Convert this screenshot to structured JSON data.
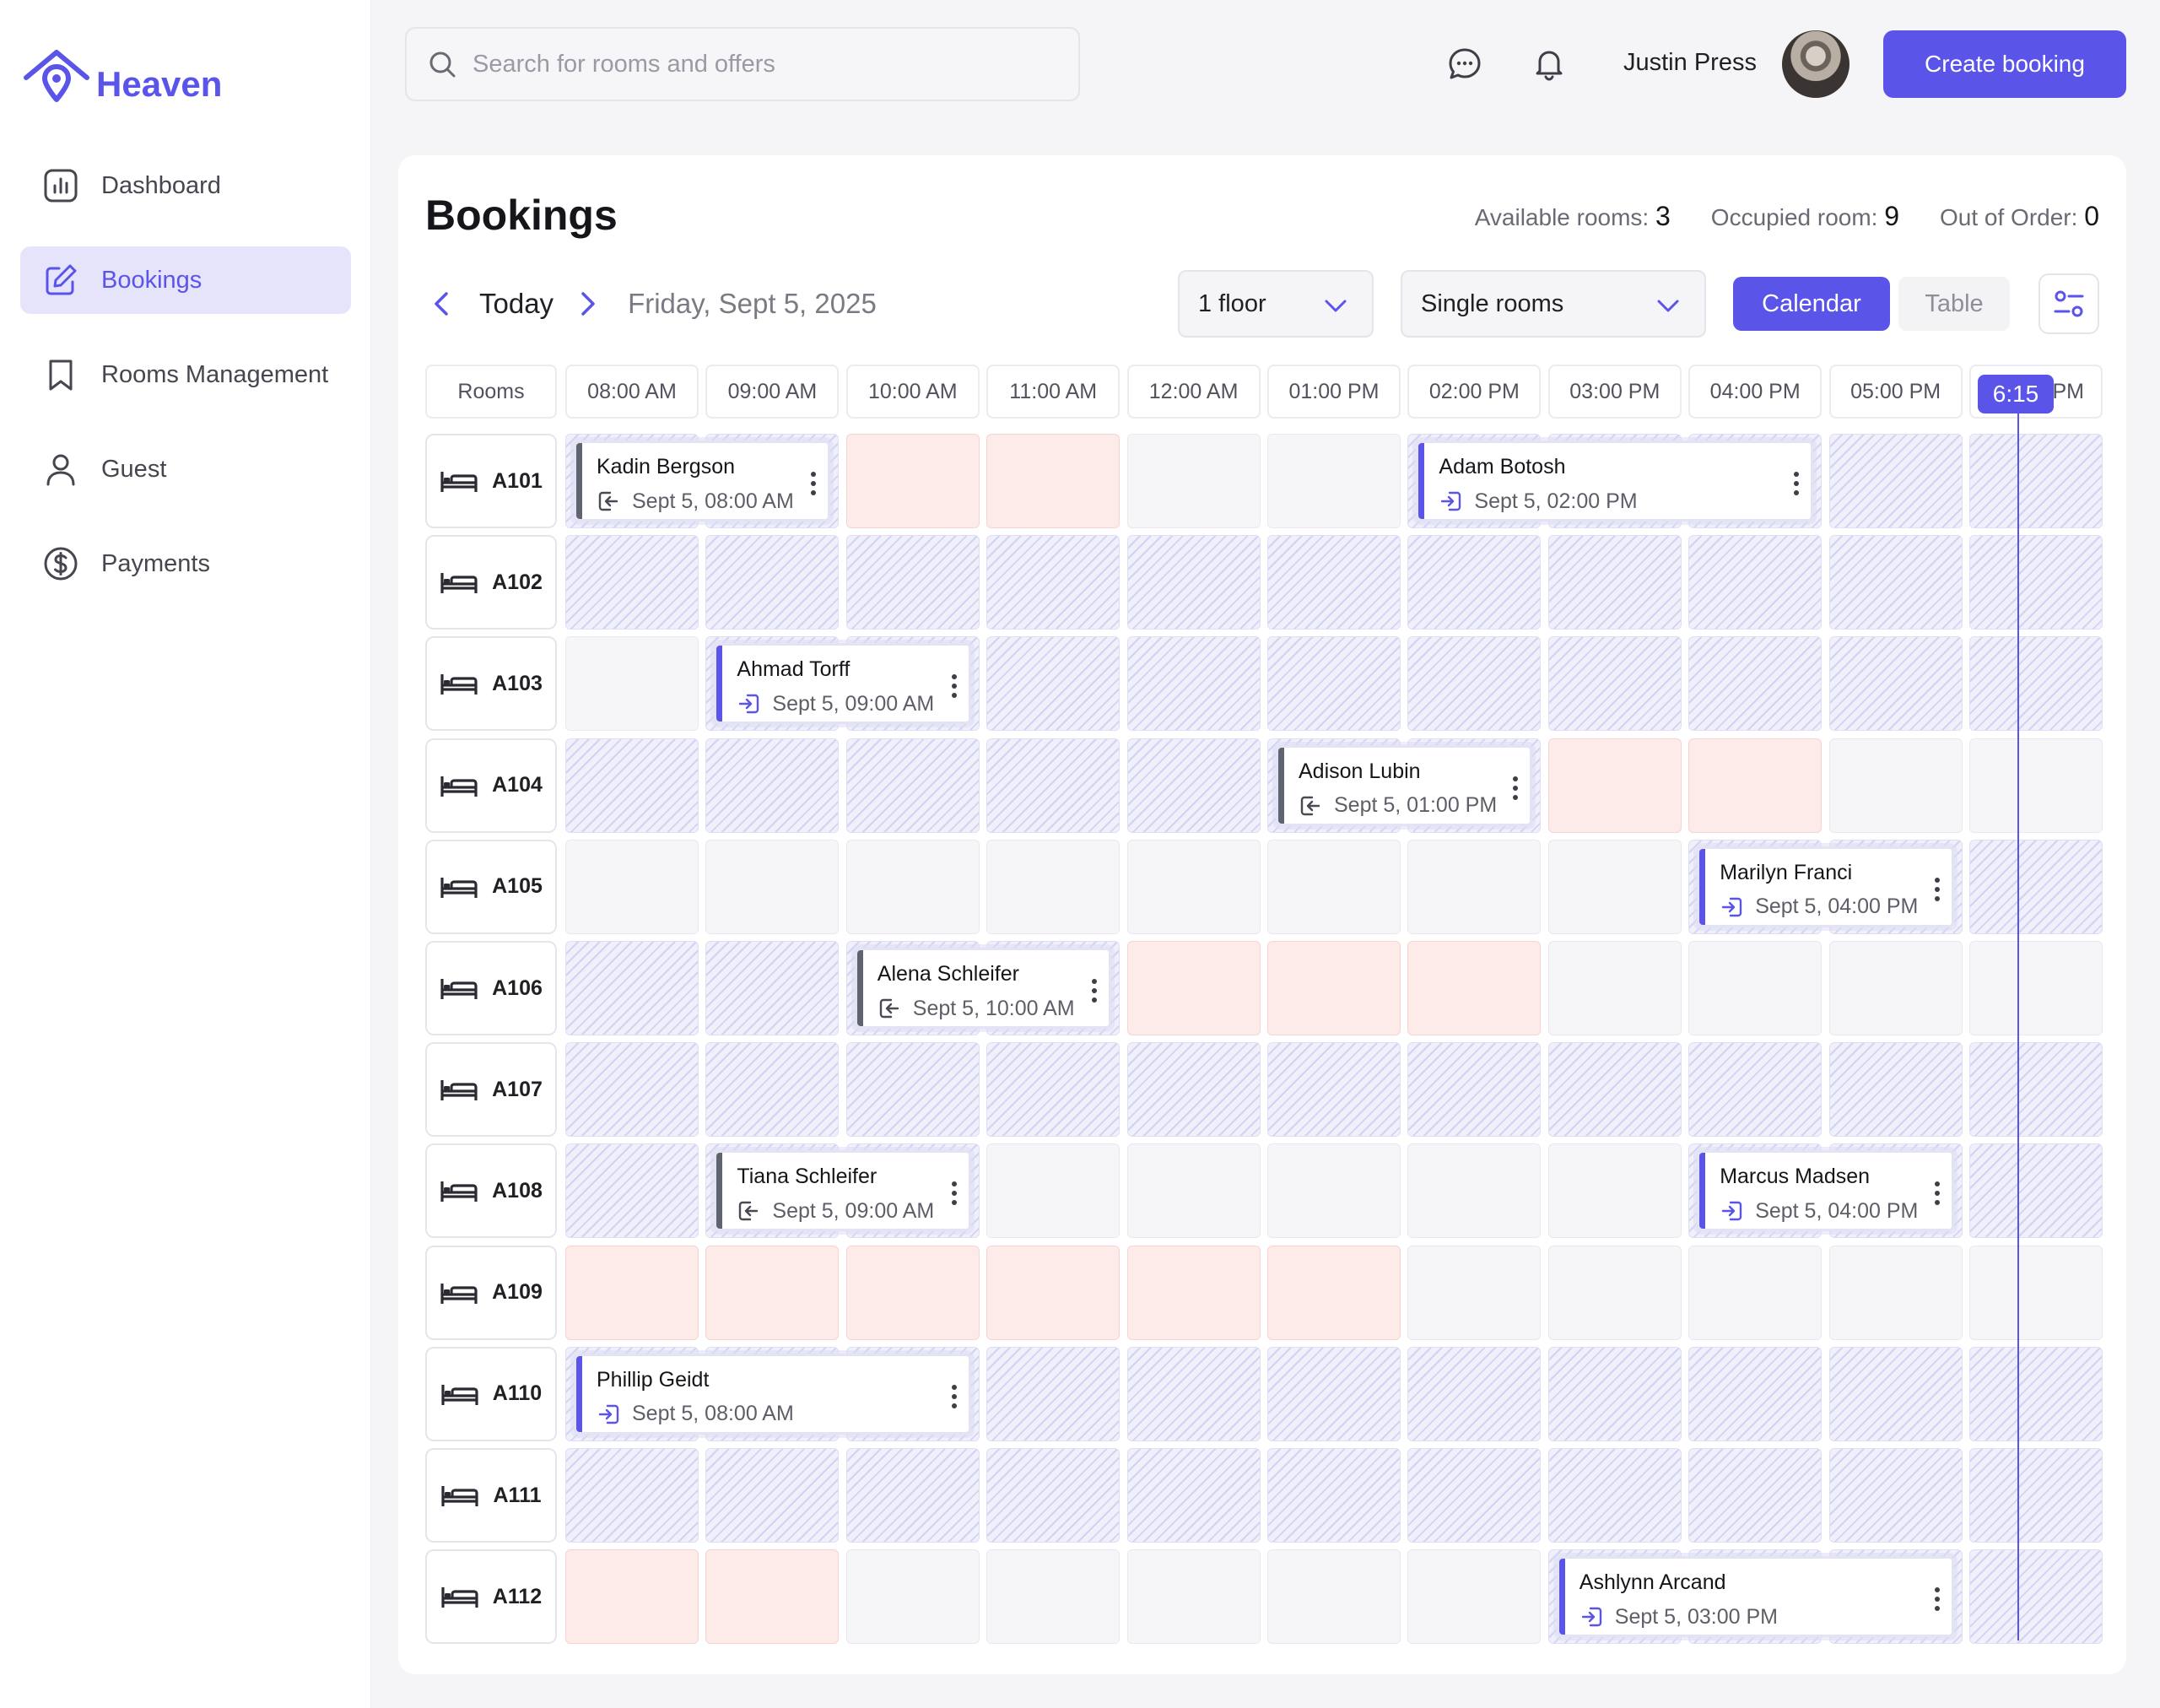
{
  "app": {
    "name": "Heaven",
    "brand_color": "#5B54E8"
  },
  "sidebar": {
    "items": [
      {
        "label": "Dashboard",
        "icon": "chart-icon",
        "active": false
      },
      {
        "label": "Bookings",
        "icon": "edit-icon",
        "active": true
      },
      {
        "label": "Rooms Management",
        "icon": "bookmark-icon",
        "active": false
      },
      {
        "label": "Guest",
        "icon": "user-icon",
        "active": false
      },
      {
        "label": "Payments",
        "icon": "dollar-icon",
        "active": false
      }
    ]
  },
  "header": {
    "search_placeholder": "Search for rooms and offers",
    "user_name": "Justin Press",
    "create_label": "Create booking"
  },
  "main": {
    "title": "Bookings",
    "stats": [
      {
        "label": "Available rooms:",
        "value": "3"
      },
      {
        "label": "Occupied room:",
        "value": "9"
      },
      {
        "label": "Out of Order:",
        "value": "0"
      }
    ],
    "today_label": "Today",
    "date": "Friday, Sept 5, 2025",
    "floor_select": "1 floor",
    "room_type_select": "Single rooms",
    "view_calendar": "Calendar",
    "view_table": "Table",
    "now_label": "6:15"
  },
  "schedule": {
    "rooms_header": "Rooms",
    "times": [
      "08:00 AM",
      "09:00 AM",
      "10:00 AM",
      "11:00 AM",
      "12:00 AM",
      "01:00 PM",
      "02:00 PM",
      "03:00 PM",
      "04:00 PM",
      "05:00 PM",
      "PM"
    ],
    "rooms": [
      "A101",
      "A102",
      "A103",
      "A104",
      "A105",
      "A106",
      "A107",
      "A108",
      "A109",
      "A110",
      "A111",
      "A112"
    ],
    "cell_states": [
      "hhbbeehhhhh",
      "hhhhhhhhhhh",
      "ehhhhhhhhhh",
      "hhhhhhhbbee",
      "eeeeeeeehhh",
      "hhhhbbbeeee",
      "hhhhhhhhhhh",
      "hhheeeeehhh",
      "bbbbbbeeeee",
      "hhhhhhhhhhh",
      "hhhhhhhhhhh",
      "bbeeeeehhhh"
    ],
    "bookings": [
      {
        "row": 0,
        "col": 0,
        "span": 2,
        "name": "Kadin Bergson",
        "time": "Sept 5, 08:00 AM",
        "kind": "out"
      },
      {
        "row": 0,
        "col": 6,
        "span": 3,
        "name": "Adam Botosh",
        "time": "Sept 5, 02:00 PM",
        "kind": "in"
      },
      {
        "row": 2,
        "col": 1,
        "span": 2,
        "name": "Ahmad Torff",
        "time": "Sept 5, 09:00 AM",
        "kind": "in"
      },
      {
        "row": 3,
        "col": 5,
        "span": 2,
        "name": "Adison Lubin",
        "time": "Sept 5, 01:00 PM",
        "kind": "out"
      },
      {
        "row": 4,
        "col": 8,
        "span": 2,
        "name": "Marilyn Franci",
        "time": "Sept 5, 04:00 PM",
        "kind": "in"
      },
      {
        "row": 5,
        "col": 2,
        "span": 2,
        "name": "Alena Schleifer",
        "time": "Sept 5, 10:00 AM",
        "kind": "out"
      },
      {
        "row": 7,
        "col": 1,
        "span": 2,
        "name": "Tiana Schleifer",
        "time": "Sept 5, 09:00 AM",
        "kind": "out"
      },
      {
        "row": 7,
        "col": 8,
        "span": 2,
        "name": "Marcus Madsen",
        "time": "Sept 5, 04:00 PM",
        "kind": "in"
      },
      {
        "row": 9,
        "col": 0,
        "span": 3,
        "name": "Phillip Geidt",
        "time": "Sept 5, 08:00 AM",
        "kind": "in"
      },
      {
        "row": 11,
        "col": 7,
        "span": 3,
        "name": "Ashlynn Arcand",
        "time": "Sept 5, 03:00 PM",
        "kind": "in"
      }
    ]
  }
}
